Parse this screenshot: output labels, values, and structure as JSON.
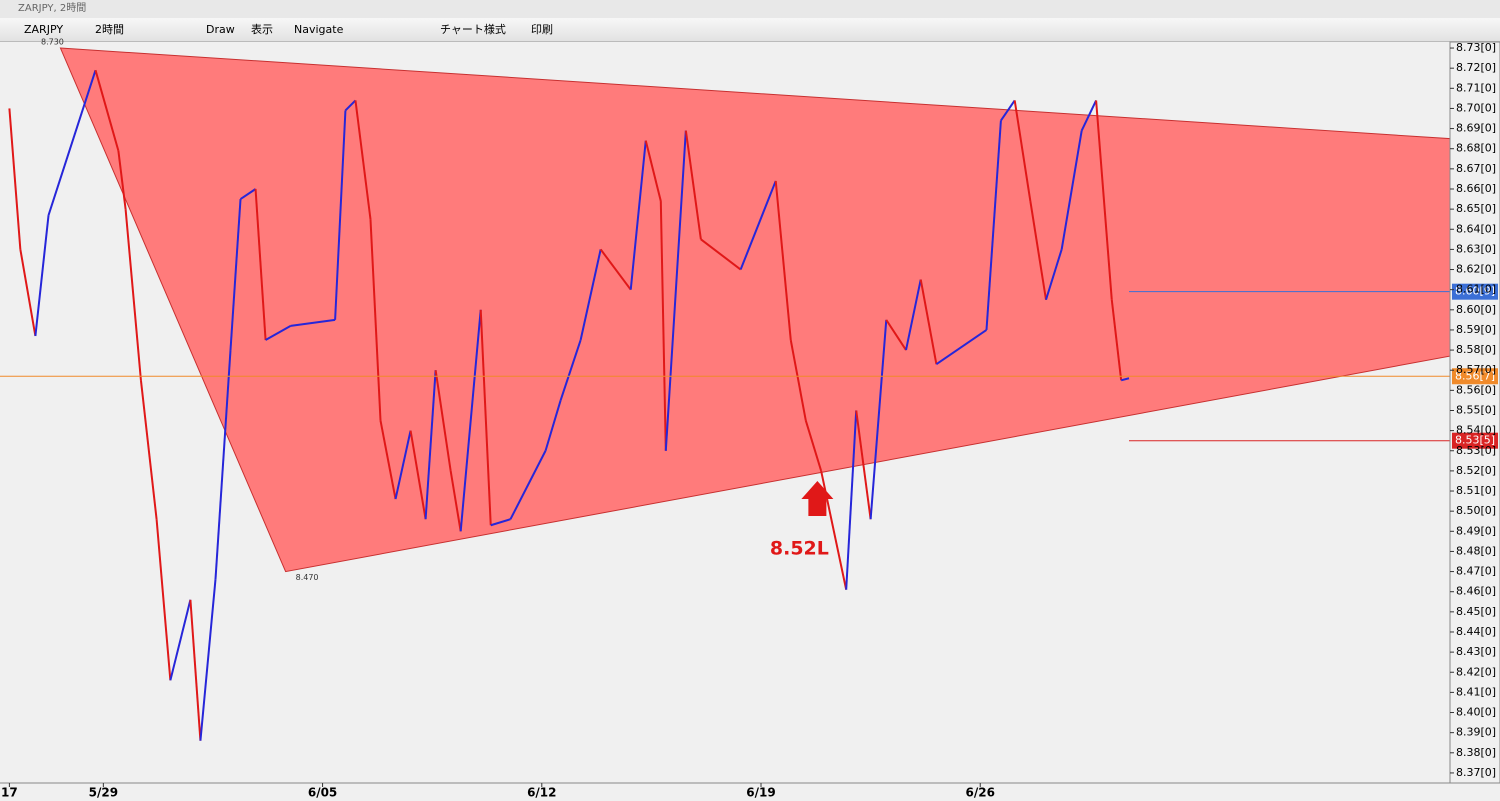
{
  "window": {
    "title": "ZARJPY, 2時間"
  },
  "toolbar": {
    "symbol": "ZARJPY",
    "timeframe": "2時間",
    "items": [
      "Draw",
      "表示",
      "Navigate",
      "チャート様式",
      "印刷"
    ]
  },
  "chart_data": {
    "type": "line",
    "x": [
      0,
      0.35,
      0.83,
      1.25,
      2.75,
      3.48,
      3.71,
      4.2,
      4.7,
      5.14,
      5.78,
      6.1,
      6.58,
      7.06,
      7.38,
      7.86,
      8.18,
      8.98,
      10.4,
      10.73,
      11.05,
      11.53,
      11.85,
      12.33,
      12.81,
      13.29,
      13.61,
      14.09,
      14.41,
      15.05,
      15.37,
      16.0,
      17.12,
      17.6,
      18.24,
      18.88,
      19.84,
      20.32,
      20.8,
      20.96,
      21.6,
      22.08,
      23.35,
      24.47,
      24.95,
      25.43,
      25.92,
      26.72,
      27.04,
      27.5,
      28.0,
      28.63,
      29.1,
      29.6,
      31.2,
      31.66,
      32.1,
      32.6,
      33.1,
      33.6,
      34.24,
      34.7,
      35.2,
      35.5,
      35.75
    ],
    "series": [
      {
        "values": [
          8.7,
          8.63,
          8.587,
          8.647,
          8.719,
          8.679,
          8.65,
          8.565,
          8.496,
          8.416,
          8.456,
          8.386,
          8.466,
          8.58,
          8.655,
          8.66,
          8.585,
          8.592,
          8.595,
          8.699,
          8.704,
          8.645,
          8.545,
          8.506,
          8.54,
          8.496,
          8.57,
          8.52,
          8.49,
          8.6,
          8.493,
          8.496,
          8.53,
          8.555,
          8.585,
          8.63,
          8.61,
          8.684,
          8.654,
          8.53,
          8.689,
          8.635,
          8.62,
          8.664,
          8.585,
          8.545,
          8.52,
          8.461,
          8.55,
          8.496,
          8.595,
          8.58,
          8.615,
          8.573,
          8.59,
          8.694,
          8.704,
          8.654,
          8.605,
          8.63,
          8.689,
          8.704,
          8.605,
          8.565,
          8.566
        ]
      }
    ],
    "up_color": "#2626d9",
    "down_color": "#e01818",
    "xlim": [
      -0.3,
      46
    ],
    "ylim": [
      8.365,
      8.733
    ],
    "xticks": [
      {
        "value": 0,
        "label": "17"
      },
      {
        "value": 3,
        "label": "5/29"
      },
      {
        "value": 10,
        "label": "6/05"
      },
      {
        "value": 17,
        "label": "6/12"
      },
      {
        "value": 24,
        "label": "6/19"
      },
      {
        "value": 31,
        "label": "6/26"
      }
    ],
    "yticks": [
      {
        "value": 8.73,
        "label": "8.73[0]"
      },
      {
        "value": 8.72,
        "label": "8.72[0]"
      },
      {
        "value": 8.71,
        "label": "8.71[0]"
      },
      {
        "value": 8.7,
        "label": "8.70[0]"
      },
      {
        "value": 8.69,
        "label": "8.69[0]"
      },
      {
        "value": 8.68,
        "label": "8.68[0]"
      },
      {
        "value": 8.67,
        "label": "8.67[0]"
      },
      {
        "value": 8.66,
        "label": "8.66[0]"
      },
      {
        "value": 8.65,
        "label": "8.65[0]"
      },
      {
        "value": 8.64,
        "label": "8.64[0]"
      },
      {
        "value": 8.63,
        "label": "8.63[0]"
      },
      {
        "value": 8.62,
        "label": "8.62[0]"
      },
      {
        "value": 8.61,
        "label": "8.61[0]"
      },
      {
        "value": 8.6,
        "label": "8.60[0]"
      },
      {
        "value": 8.59,
        "label": "8.59[0]"
      },
      {
        "value": 8.58,
        "label": "8.58[0]"
      },
      {
        "value": 8.57,
        "label": "8.57[0]"
      },
      {
        "value": 8.56,
        "label": "8.56[0]"
      },
      {
        "value": 8.55,
        "label": "8.55[0]"
      },
      {
        "value": 8.54,
        "label": "8.54[0]"
      },
      {
        "value": 8.53,
        "label": "8.53[0]"
      },
      {
        "value": 8.52,
        "label": "8.52[0]"
      },
      {
        "value": 8.51,
        "label": "8.51[0]"
      },
      {
        "value": 8.5,
        "label": "8.50[0]"
      },
      {
        "value": 8.49,
        "label": "8.49[0]"
      },
      {
        "value": 8.48,
        "label": "8.48[0]"
      },
      {
        "value": 8.47,
        "label": "8.47[0]"
      },
      {
        "value": 8.46,
        "label": "8.46[0]"
      },
      {
        "value": 8.45,
        "label": "8.45[0]"
      },
      {
        "value": 8.44,
        "label": "8.44[0]"
      },
      {
        "value": 8.43,
        "label": "8.43[0]"
      },
      {
        "value": 8.42,
        "label": "8.42[0]"
      },
      {
        "value": 8.41,
        "label": "8.41[0]"
      },
      {
        "value": 8.4,
        "label": "8.40[0]"
      },
      {
        "value": 8.39,
        "label": "8.39[0]"
      },
      {
        "value": 8.38,
        "label": "8.38[0]"
      },
      {
        "value": 8.37,
        "label": "8.37[0]"
      }
    ],
    "triangle": {
      "color": "#ff7b7b",
      "points": [
        {
          "x": 1.63,
          "y": 8.73,
          "label": "8.730"
        },
        {
          "x": 46,
          "y": 8.685
        },
        {
          "x": 46,
          "y": 8.577
        },
        {
          "x": 8.82,
          "y": 8.47,
          "label": "8.470"
        }
      ]
    },
    "levels": [
      {
        "value": 8.609,
        "label": "8.60[9]",
        "color": "#3b6fd6"
      },
      {
        "value": 8.567,
        "label": "8.56[7]",
        "color": "#f08a2a"
      },
      {
        "value": 8.535,
        "label": "8.53[5]",
        "color": "#d92424"
      }
    ],
    "annotation": {
      "text": "8.52L",
      "x": 25.8,
      "y": 8.515,
      "color": "#e01818"
    }
  }
}
